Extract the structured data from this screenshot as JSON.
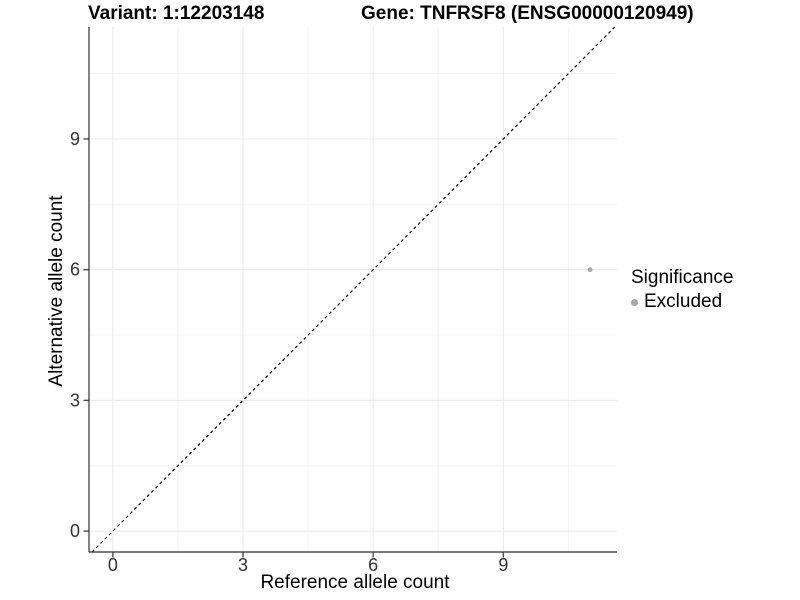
{
  "title": {
    "variant": "Variant: 1:12203148",
    "gene": "Gene: TNFRSF8 (ENSG00000120949)"
  },
  "chart_data": {
    "type": "scatter",
    "xlabel": "Reference allele count",
    "ylabel": "Alternative allele count",
    "xlim": [
      -0.55,
      11.62
    ],
    "ylim": [
      -0.48,
      11.57
    ],
    "xticks": [
      0,
      3,
      6,
      9
    ],
    "yticks": [
      0,
      3,
      6,
      9
    ],
    "xticks_minor": [
      1.5,
      4.5,
      7.5,
      10.5
    ],
    "yticks_minor": [
      1.5,
      4.5,
      7.5,
      10.5
    ],
    "grid": true,
    "points": [
      {
        "x": 11,
        "y": 6,
        "significance": "Excluded"
      }
    ],
    "reference_line": {
      "type": "identity",
      "style": "dashed"
    },
    "legend": {
      "title": "Significance",
      "position": "right",
      "items": [
        {
          "label": "Excluded",
          "color": "#a8a8a8"
        }
      ]
    },
    "colors": {
      "point": "#a8a8a8",
      "grid_major": "#e8e8e8",
      "grid_minor": "#f4f4f4",
      "axis": "#4d4d4d",
      "tick_label": "#333333",
      "reference_line": "#000000",
      "background": "#ffffff"
    }
  }
}
